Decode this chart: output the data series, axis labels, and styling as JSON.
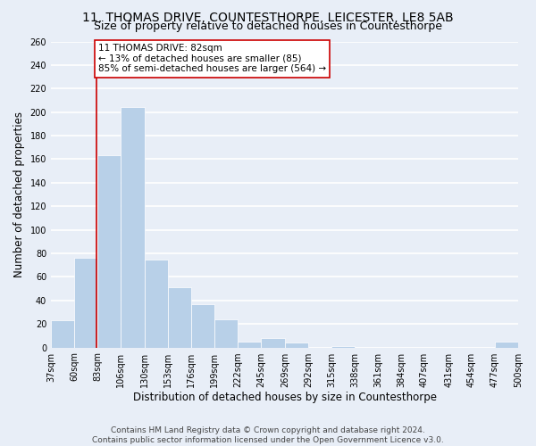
{
  "title": "11, THOMAS DRIVE, COUNTESTHORPE, LEICESTER, LE8 5AB",
  "subtitle": "Size of property relative to detached houses in Countesthorpe",
  "xlabel": "Distribution of detached houses by size in Countesthorpe",
  "ylabel": "Number of detached properties",
  "bin_edges": [
    37,
    60,
    83,
    106,
    130,
    153,
    176,
    199,
    222,
    245,
    269,
    292,
    315,
    338,
    361,
    384,
    407,
    431,
    454,
    477,
    500
  ],
  "bar_heights": [
    23,
    76,
    163,
    204,
    75,
    51,
    37,
    24,
    5,
    8,
    4,
    0,
    1,
    0,
    0,
    0,
    0,
    0,
    0,
    5
  ],
  "bar_color": "#b8d0e8",
  "bar_edge_color": "#b8d0e8",
  "property_size": 82,
  "vline_color": "#cc0000",
  "annotation_text": "11 THOMAS DRIVE: 82sqm\n← 13% of detached houses are smaller (85)\n85% of semi-detached houses are larger (564) →",
  "annotation_box_color": "white",
  "annotation_box_edge": "#cc0000",
  "ylim": [
    0,
    260
  ],
  "yticks": [
    0,
    20,
    40,
    60,
    80,
    100,
    120,
    140,
    160,
    180,
    200,
    220,
    240,
    260
  ],
  "tick_labels": [
    "37sqm",
    "60sqm",
    "83sqm",
    "106sqm",
    "130sqm",
    "153sqm",
    "176sqm",
    "199sqm",
    "222sqm",
    "245sqm",
    "269sqm",
    "292sqm",
    "315sqm",
    "338sqm",
    "361sqm",
    "384sqm",
    "407sqm",
    "431sqm",
    "454sqm",
    "477sqm",
    "500sqm"
  ],
  "footer_text": "Contains HM Land Registry data © Crown copyright and database right 2024.\nContains public sector information licensed under the Open Government Licence v3.0.",
  "bg_color": "#e8eef7",
  "plot_bg_color": "#e8eef7",
  "grid_color": "white",
  "title_fontsize": 10,
  "subtitle_fontsize": 9,
  "axis_label_fontsize": 8.5,
  "tick_fontsize": 7,
  "footer_fontsize": 6.5,
  "annotation_fontsize": 7.5
}
